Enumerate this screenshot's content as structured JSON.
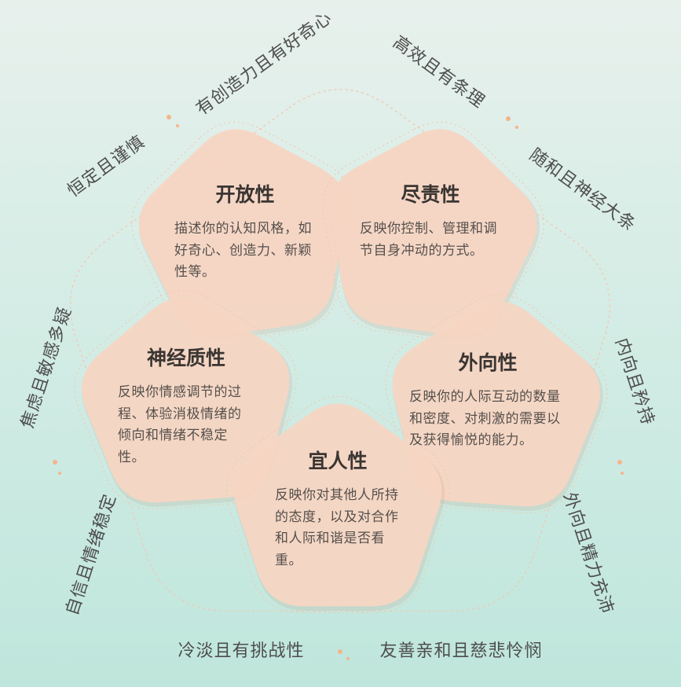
{
  "traits": {
    "openness": {
      "title": "开放性",
      "desc": "描述你的认知风格，如好奇心、创造力、新颖性等。"
    },
    "conscientiousness": {
      "title": "尽责性",
      "desc": "反映你控制、管理和调节自身冲动的方式。"
    },
    "neuroticism": {
      "title": "神经质性",
      "desc": "反映你情感调节的过程、体验消极情绪的倾向和情绪不稳定性。"
    },
    "extraversion": {
      "title": "外向性",
      "desc": "反映你的人际互动的数量和密度、对刺激的需要以及获得愉悦的能力。"
    },
    "agreeableness": {
      "title": "宜人性",
      "desc": "反映你对其他人所持的态度，以及对合作和人际和谐是否看重。"
    }
  },
  "poles": {
    "curious": "有创造力且有好奇心",
    "cautious": "恒定且谨慎",
    "organized": "高效且有条理",
    "easygoing": "随和且神经大条",
    "anxious": "焦虑且敏感多疑",
    "stable": "自信且情绪稳定",
    "reserved": "内向且矜持",
    "energetic": "外向且精力充沛",
    "detached": "冷淡且有挑战性",
    "friendly": "友善亲和且慈悲怜悯"
  },
  "colors": {
    "background_top": "#e8f0ec",
    "background_bottom": "#bfe6dc",
    "petal_fill": "#f6d5c4",
    "dot_accent": "#f4b58d"
  }
}
